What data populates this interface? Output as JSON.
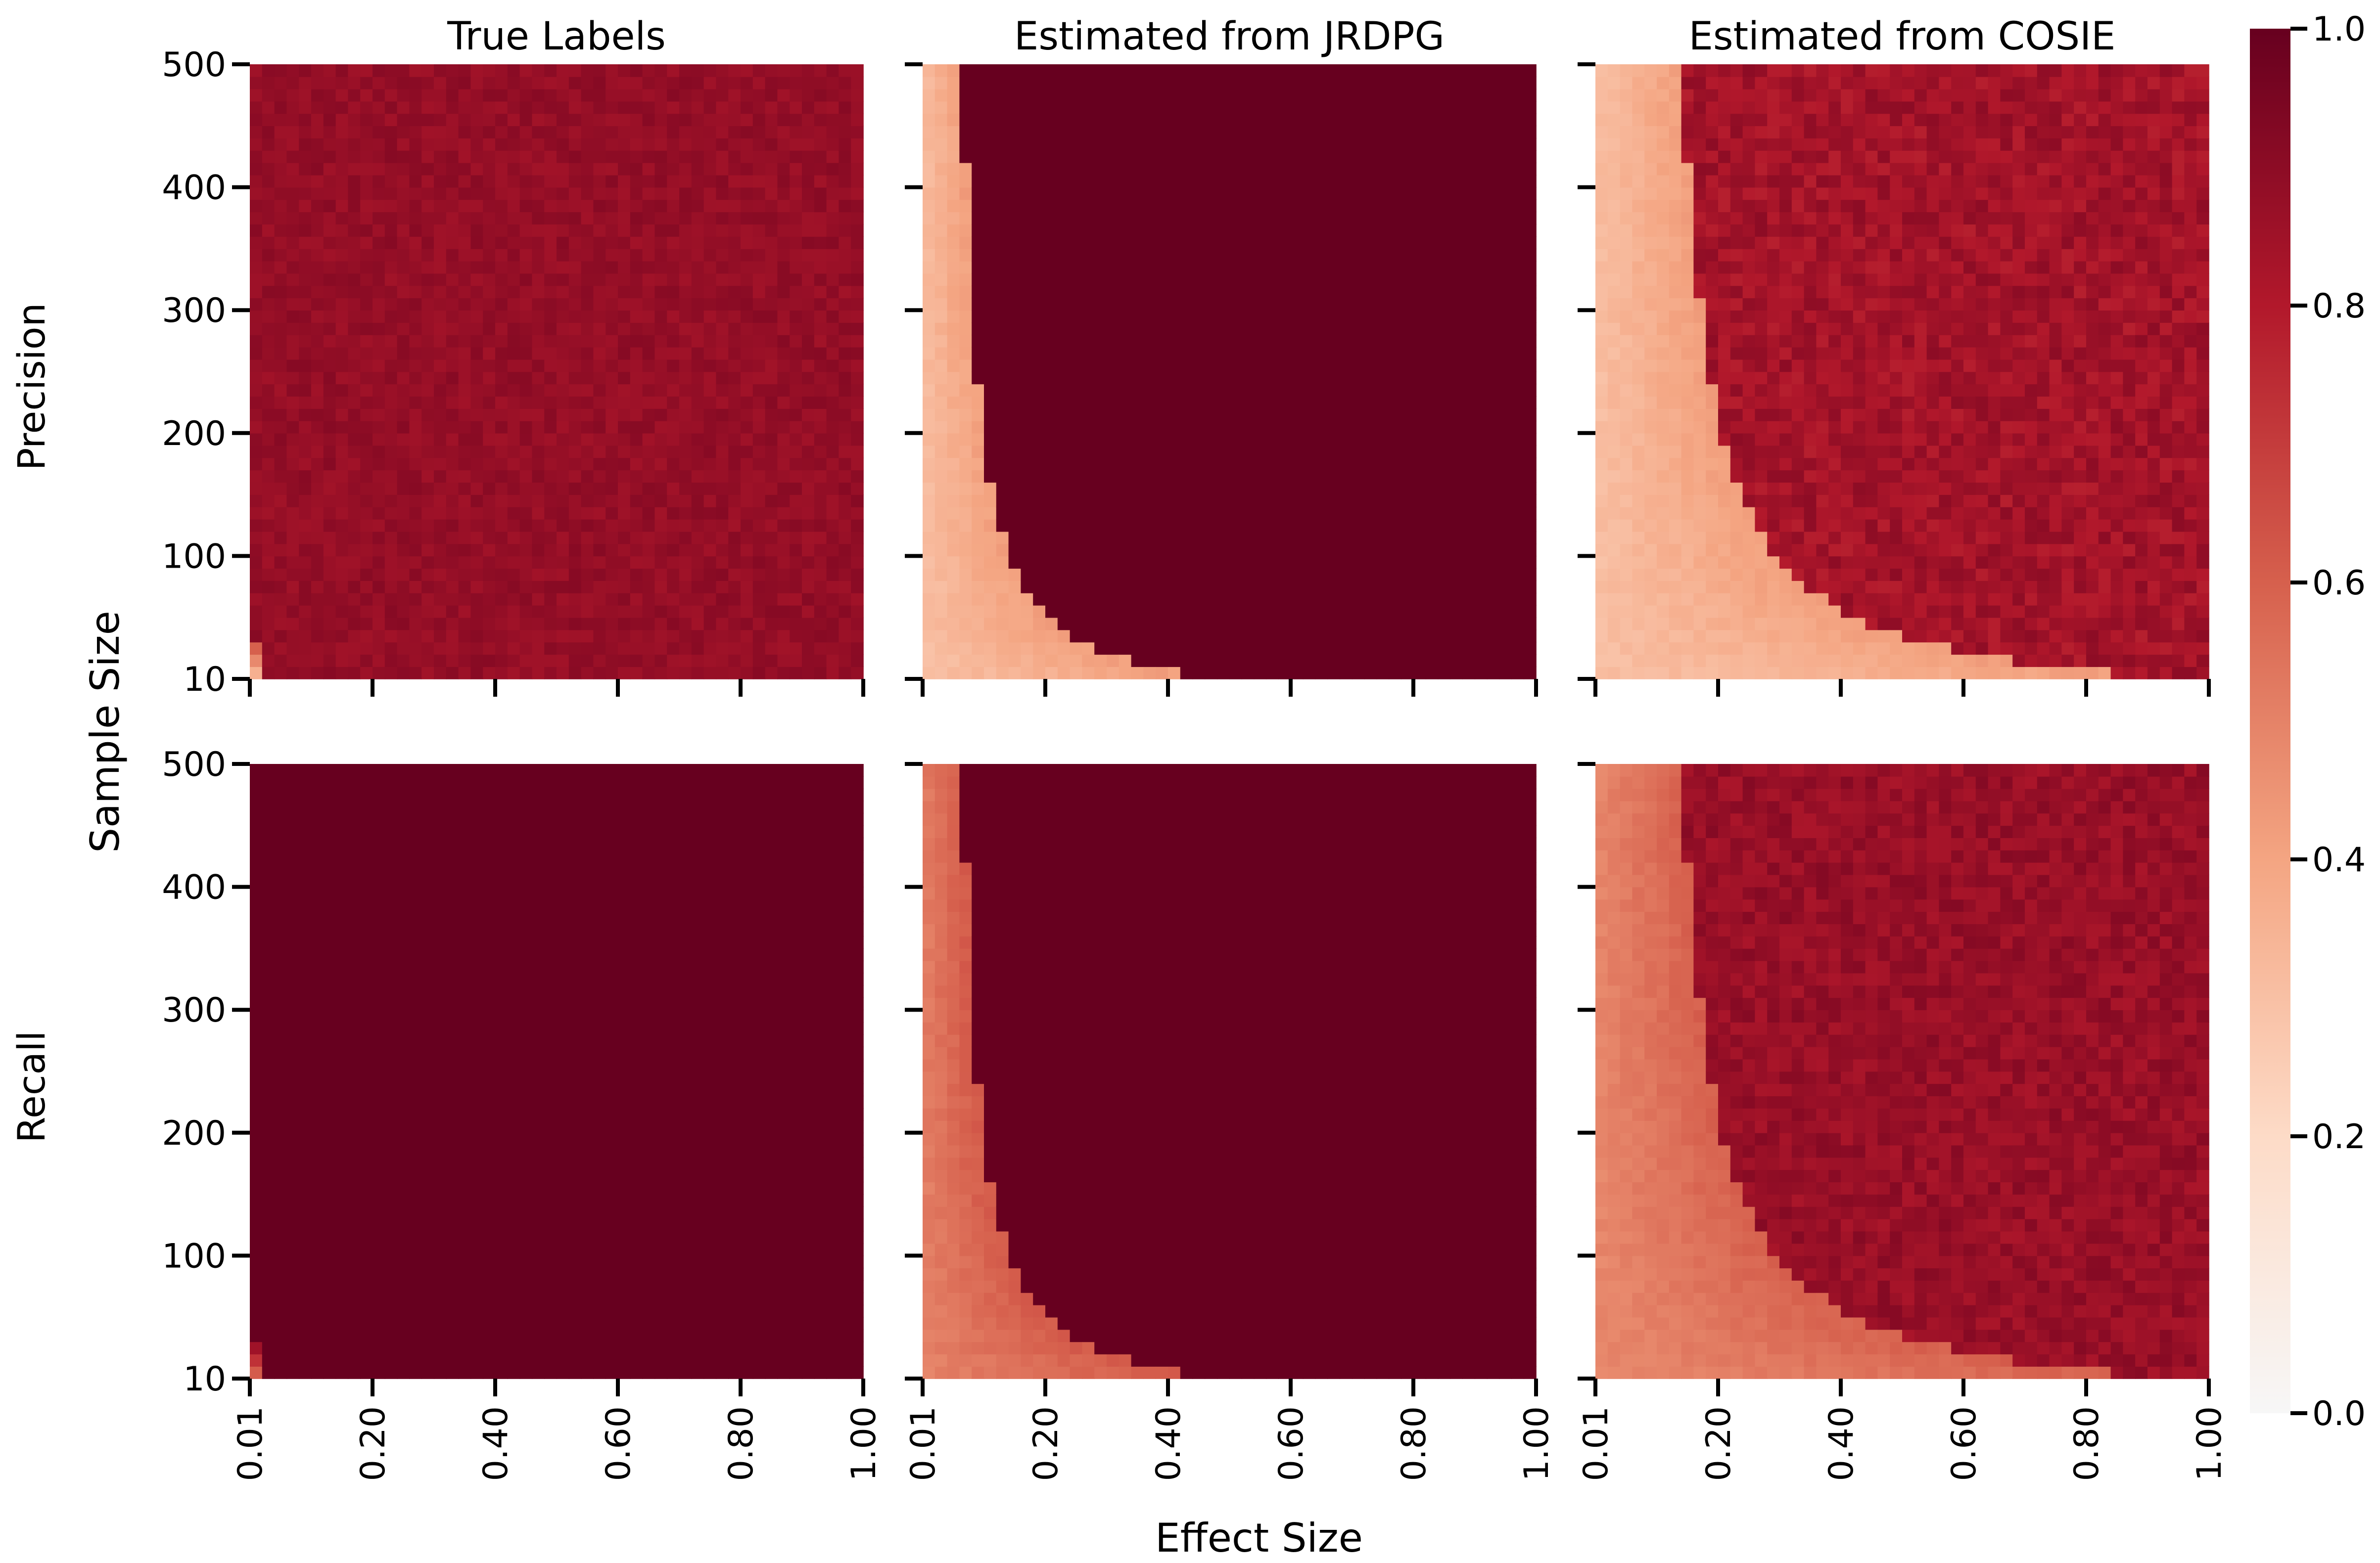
{
  "chart_data": [
    {
      "type": "heatmap",
      "title": "True Labels",
      "row": "Precision",
      "x_ticks": [
        "0.01",
        "0.20",
        "0.40",
        "0.60",
        "0.80",
        "1.00"
      ],
      "y_ticks": [
        "10",
        "100",
        "200",
        "300",
        "400",
        "500"
      ],
      "xlim": [
        0.01,
        1.0
      ],
      "ylim": [
        10,
        500
      ],
      "pattern": {
        "base": 0.88,
        "low_corner": 0.6,
        "transition_effect": 0.01,
        "noise": 0.035
      }
    },
    {
      "type": "heatmap",
      "title": "Estimated from JRDPG",
      "row": "Precision",
      "x_ticks": [
        "0.01",
        "0.20",
        "0.40",
        "0.60",
        "0.80",
        "1.00"
      ],
      "y_ticks": [
        "10",
        "100",
        "200",
        "300",
        "400",
        "500"
      ],
      "xlim": [
        0.01,
        1.0
      ],
      "ylim": [
        10,
        500
      ],
      "pattern": {
        "base": 1.0,
        "low_value": 0.3,
        "transition_effect": 0.05,
        "noise": 0.0
      }
    },
    {
      "type": "heatmap",
      "title": "Estimated from COSIE",
      "row": "Precision",
      "x_ticks": [
        "0.01",
        "0.20",
        "0.40",
        "0.60",
        "0.80",
        "1.00"
      ],
      "y_ticks": [
        "10",
        "100",
        "200",
        "300",
        "400",
        "500"
      ],
      "xlim": [
        0.01,
        1.0
      ],
      "ylim": [
        10,
        500
      ],
      "pattern": {
        "base": 0.84,
        "low_value": 0.3,
        "transition_effect": 0.1,
        "noise": 0.06
      }
    },
    {
      "type": "heatmap",
      "title": "",
      "row": "Recall",
      "x_ticks": [
        "0.01",
        "0.20",
        "0.40",
        "0.60",
        "0.80",
        "1.00"
      ],
      "y_ticks": [
        "10",
        "100",
        "200",
        "300",
        "400",
        "500"
      ],
      "xlim": [
        0.01,
        1.0
      ],
      "ylim": [
        10,
        500
      ],
      "pattern": {
        "base": 1.0,
        "low_corner": 0.85,
        "transition_effect": 0.01,
        "noise": 0.0
      }
    },
    {
      "type": "heatmap",
      "title": "",
      "row": "Recall",
      "x_ticks": [
        "0.01",
        "0.20",
        "0.40",
        "0.60",
        "0.80",
        "1.00"
      ],
      "y_ticks": [
        "10",
        "100",
        "200",
        "300",
        "400",
        "500"
      ],
      "xlim": [
        0.01,
        1.0
      ],
      "ylim": [
        10,
        500
      ],
      "pattern": {
        "base": 1.0,
        "low_value": 0.5,
        "transition_effect": 0.05,
        "noise": 0.0
      }
    },
    {
      "type": "heatmap",
      "title": "",
      "row": "Recall",
      "x_ticks": [
        "0.01",
        "0.20",
        "0.40",
        "0.60",
        "0.80",
        "1.00"
      ],
      "y_ticks": [
        "10",
        "100",
        "200",
        "300",
        "400",
        "500"
      ],
      "xlim": [
        0.01,
        1.0
      ],
      "ylim": [
        10,
        500
      ],
      "pattern": {
        "base": 0.87,
        "low_value": 0.48,
        "transition_effect": 0.1,
        "noise": 0.05
      }
    }
  ],
  "labels": {
    "row_top": "Precision",
    "row_bottom": "Recall",
    "ylabel": "Sample Size",
    "xlabel": "Effect Size"
  },
  "colorbar": {
    "ticks": [
      "0.0",
      "0.2",
      "0.4",
      "0.6",
      "0.8",
      "1.0"
    ],
    "range": [
      0,
      1
    ],
    "colors": [
      "#f7f7f7",
      "#fddbc7",
      "#f4a582",
      "#d6604d",
      "#b2182b",
      "#67001f"
    ]
  }
}
